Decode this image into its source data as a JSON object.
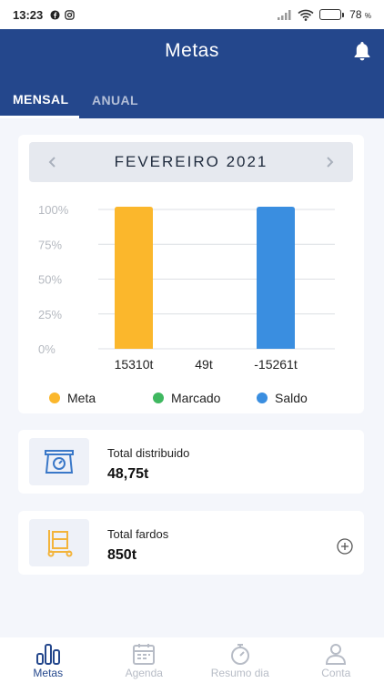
{
  "status_bar": {
    "time": "13:23",
    "battery_percent": "78",
    "battery_unit": "%",
    "battery_level": 0.78,
    "left_icons": [
      "facebook-icon",
      "instagram-icon"
    ],
    "right_icons": [
      "signal-icon",
      "wifi-icon",
      "battery-icon"
    ]
  },
  "header": {
    "title": "Metas",
    "tabs": [
      {
        "label": "MENSAL",
        "active": true
      },
      {
        "label": "ANUAL",
        "active": false
      }
    ],
    "bell_icon": "bell-icon"
  },
  "month_selector": {
    "label": "FEVEREIRO 2021",
    "prev_icon": "chevron-left-icon",
    "next_icon": "chevron-right-icon"
  },
  "chart_data": {
    "type": "bar",
    "categories": [
      "15310t",
      "49t",
      "-15261t"
    ],
    "values": [
      100,
      0,
      100
    ],
    "colors": [
      "#fbb72c",
      "#3fb860",
      "#3a8ee0"
    ],
    "y_tick_labels": [
      "100%",
      "75%",
      "50%",
      "25%",
      "0%"
    ],
    "y_ticks": [
      100,
      75,
      50,
      25,
      0
    ],
    "ylim": [
      0,
      100
    ],
    "grid": true,
    "legend": [
      {
        "label": "Meta",
        "color": "#fbb72c"
      },
      {
        "label": "Marcado",
        "color": "#3fb860"
      },
      {
        "label": "Saldo",
        "color": "#3a8ee0"
      }
    ],
    "legend_placement": "bottom"
  },
  "cards": [
    {
      "label": "Total distribuido",
      "value": "48,75t",
      "icon": "scale-icon",
      "accent": "#3a78c8"
    },
    {
      "label": "Total fardos",
      "value": "850t",
      "icon": "hand-truck-icon",
      "accent": "#f3b43b",
      "action_icon": "plus-circle-icon"
    }
  ],
  "bottom_nav": [
    {
      "label": "Metas",
      "icon": "bar-chart-icon",
      "active": true
    },
    {
      "label": "Agenda",
      "icon": "calendar-icon",
      "active": false
    },
    {
      "label": "Resumo dia",
      "icon": "stopwatch-icon",
      "active": false
    },
    {
      "label": "Conta",
      "icon": "user-icon",
      "active": false
    }
  ],
  "colors": {
    "primary": "#24478c",
    "background": "#f4f6fb",
    "inactive": "#b7bcc6"
  }
}
